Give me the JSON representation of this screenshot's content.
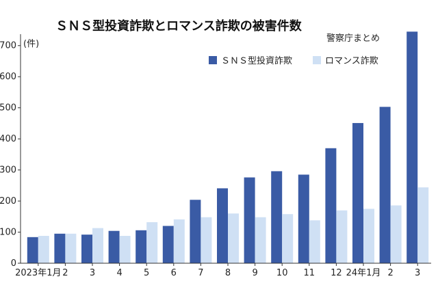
{
  "chart_data": {
    "type": "bar",
    "title": "ＳＮＳ型投資詐欺とロマンス詐欺の被害件数",
    "source": "警察庁まとめ",
    "ylabel": "(件)",
    "ylim": [
      0,
      750
    ],
    "yticks": [
      0,
      100,
      200,
      300,
      400,
      500,
      600,
      700
    ],
    "ytick_labels": [
      "0",
      "100",
      "200",
      "300",
      "400",
      "500",
      "600",
      "700"
    ],
    "categories": [
      "2023年1月",
      "2",
      "3",
      "4",
      "5",
      "6",
      "7",
      "8",
      "9",
      "10",
      "11",
      "12",
      "24年1月",
      "2",
      "3"
    ],
    "series": [
      {
        "name": "ＳＮＳ型投資詐欺",
        "color": "#3a5ba5",
        "values": [
          84,
          95,
          92,
          104,
          106,
          120,
          204,
          241,
          276,
          296,
          285,
          370,
          451,
          503,
          745
        ]
      },
      {
        "name": "ロマンス詐欺",
        "color": "#cfe0f4",
        "values": [
          88,
          95,
          113,
          88,
          132,
          141,
          148,
          160,
          148,
          158,
          138,
          170,
          175,
          186,
          244
        ]
      }
    ],
    "legend_position": "top-right",
    "grid": false
  }
}
